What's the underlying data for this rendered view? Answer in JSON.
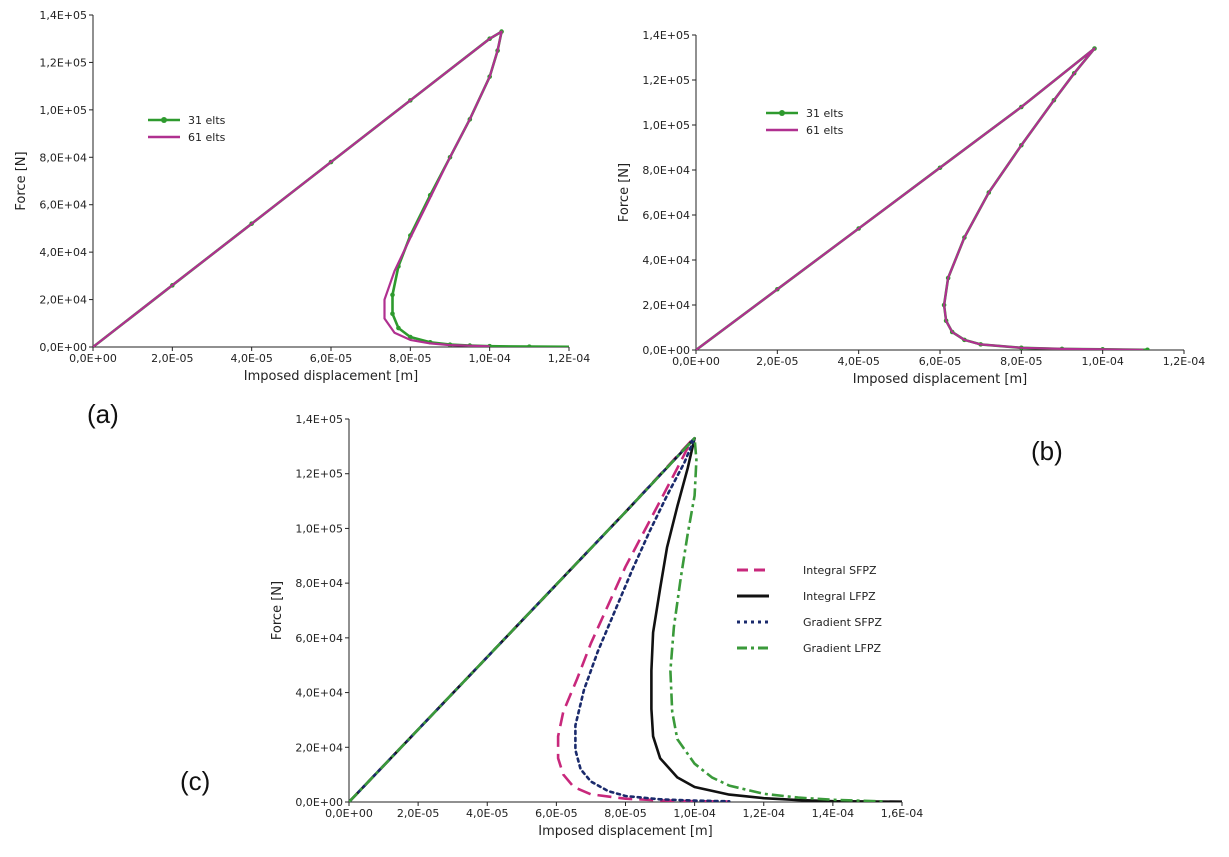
{
  "figure": {
    "panel_labels": [
      "(a)",
      "(b)",
      "(c)"
    ]
  },
  "chart_data": [
    {
      "id": "a",
      "type": "line",
      "panel_label": "(a)",
      "xlabel": "Imposed displacement [m]",
      "ylabel": "Force [N]",
      "xlim": [
        0,
        0.00012
      ],
      "ylim": [
        0,
        140000
      ],
      "xticks": [
        0,
        2e-05,
        4e-05,
        6e-05,
        8e-05,
        0.0001,
        0.00012
      ],
      "xtick_labels": [
        "0,0E+00",
        "2,0E-05",
        "4,0E-05",
        "6,0E-05",
        "8,0E-05",
        "1,0E-04",
        "1,2E-04"
      ],
      "yticks": [
        0,
        20000,
        40000,
        60000,
        80000,
        100000,
        120000,
        140000
      ],
      "ytick_labels": [
        "0,0E+00",
        "2,0E+04",
        "4,0E+04",
        "6,0E+04",
        "8,0E+04",
        "1,0E+05",
        "1,2E+05",
        "1,4E+05"
      ],
      "legend": "top-left",
      "series": [
        {
          "name": "31 elts",
          "color": "#2e9a2e",
          "style": "solid",
          "marker": "circle",
          "x": [
            0,
            2e-05,
            4e-05,
            6e-05,
            8e-05,
            0.0001,
            0.000103,
            0.000102,
            0.0001,
            9.5e-05,
            9e-05,
            8.5e-05,
            8e-05,
            7.7e-05,
            7.55e-05,
            7.55e-05,
            7.7e-05,
            8e-05,
            8.5e-05,
            9e-05,
            9.5e-05,
            0.0001,
            0.00011,
            0.000124
          ],
          "y": [
            0,
            26000,
            52000,
            78000,
            104000,
            130000,
            133000,
            125000,
            114000,
            96000,
            80000,
            64000,
            47000,
            34000,
            22000,
            14000,
            8000,
            4200,
            2000,
            1000,
            600,
            350,
            150,
            60
          ]
        },
        {
          "name": "61 elts",
          "color": "#b03090",
          "style": "solid",
          "marker": "none",
          "x": [
            0,
            2e-05,
            4e-05,
            6e-05,
            8e-05,
            0.0001,
            0.000103,
            0.000102,
            0.0001,
            9.5e-05,
            9e-05,
            8.5e-05,
            8e-05,
            7.6e-05,
            7.35e-05,
            7.35e-05,
            7.6e-05,
            8e-05,
            8.5e-05,
            9e-05,
            0.0001
          ],
          "y": [
            0,
            26000,
            52000,
            78000,
            104000,
            130000,
            133000,
            125000,
            114000,
            96000,
            80000,
            63000,
            46000,
            32000,
            20000,
            12000,
            6000,
            3000,
            1500,
            800,
            300
          ]
        }
      ]
    },
    {
      "id": "b",
      "type": "line",
      "panel_label": "(b)",
      "xlabel": "Imposed displacement [m]",
      "ylabel": "Force [N]",
      "xlim": [
        0,
        0.00012
      ],
      "ylim": [
        0,
        140000
      ],
      "xticks": [
        0,
        2e-05,
        4e-05,
        6e-05,
        8e-05,
        0.0001,
        0.00012
      ],
      "xtick_labels": [
        "0,0E+00",
        "2,0E-05",
        "4,0E-05",
        "6,0E-05",
        "8,0E-05",
        "1,0E-04",
        "1,2E-04"
      ],
      "yticks": [
        0,
        20000,
        40000,
        60000,
        80000,
        100000,
        120000,
        140000
      ],
      "ytick_labels": [
        "0,0E+00",
        "2,0E+04",
        "4,0E+04",
        "6,0E+04",
        "8,0E+04",
        "1,0E+05",
        "1,2E+05",
        "1,4E+05"
      ],
      "legend": "top-left",
      "series": [
        {
          "name": "31 elts",
          "color": "#2e9a2e",
          "style": "solid",
          "marker": "circle",
          "x": [
            0,
            2e-05,
            4e-05,
            6e-05,
            8e-05,
            9.8e-05,
            9.3e-05,
            8.8e-05,
            8e-05,
            7.2e-05,
            6.6e-05,
            6.2e-05,
            6.1e-05,
            6.15e-05,
            6.3e-05,
            6.6e-05,
            7e-05,
            8e-05,
            9e-05,
            0.0001,
            0.000111
          ],
          "y": [
            0,
            27000,
            54000,
            81000,
            108000,
            134000,
            123000,
            111000,
            91000,
            70000,
            50000,
            32000,
            20000,
            13000,
            8000,
            4500,
            2500,
            1000,
            500,
            300,
            100
          ]
        },
        {
          "name": "61 elts",
          "color": "#b03090",
          "style": "solid",
          "marker": "none",
          "x": [
            0,
            2e-05,
            4e-05,
            6e-05,
            8e-05,
            9.8e-05,
            9.3e-05,
            8.8e-05,
            8e-05,
            7.2e-05,
            6.6e-05,
            6.2e-05,
            6.1e-05,
            6.15e-05,
            6.3e-05,
            6.6e-05,
            7e-05,
            8e-05,
            9e-05,
            0.0001,
            0.00011
          ],
          "y": [
            0,
            27000,
            54000,
            81000,
            108000,
            134000,
            123000,
            111000,
            91000,
            70000,
            50000,
            32000,
            20000,
            13000,
            8000,
            4500,
            2500,
            1000,
            500,
            300,
            100
          ]
        }
      ]
    },
    {
      "id": "c",
      "type": "line",
      "panel_label": "(c)",
      "xlabel": "Imposed displacement [m]",
      "ylabel": "Force [N]",
      "xlim": [
        0,
        0.00016
      ],
      "ylim": [
        0,
        140000
      ],
      "xticks": [
        0,
        2e-05,
        4e-05,
        6e-05,
        8e-05,
        0.0001,
        0.00012,
        0.00014,
        0.00016
      ],
      "xtick_labels": [
        "0,0E+00",
        "2,0E-05",
        "4,0E-05",
        "6,0E-05",
        "8,0E-05",
        "1,0E-04",
        "1,2E-04",
        "1,4E-04",
        "1,6E-04"
      ],
      "yticks": [
        0,
        20000,
        40000,
        60000,
        80000,
        100000,
        120000,
        140000
      ],
      "ytick_labels": [
        "0,0E+00",
        "2,0E+04",
        "4,0E+04",
        "6,0E+04",
        "8,0E+04",
        "1,0E+05",
        "1,2E+05",
        "1,4E+05"
      ],
      "legend": "right",
      "series": [
        {
          "name": "Integral SFPZ",
          "color": "#c8287c",
          "style": "dashed",
          "x": [
            0,
            4e-05,
            8e-05,
            9.9e-05,
            9.5e-05,
            9e-05,
            8.5e-05,
            8e-05,
            7.5e-05,
            7e-05,
            6.6e-05,
            6.2e-05,
            6.05e-05,
            6.05e-05,
            6.2e-05,
            6.5e-05,
            7e-05,
            8e-05,
            9e-05,
            0.0001,
            0.00011
          ],
          "y": [
            0,
            53000,
            106000,
            132000,
            122000,
            110000,
            98000,
            86000,
            72000,
            58000,
            45000,
            33000,
            24000,
            16000,
            10000,
            5500,
            2800,
            1200,
            600,
            300,
            150
          ]
        },
        {
          "name": "Integral LFPZ",
          "color": "#111111",
          "style": "solid",
          "x": [
            0,
            4e-05,
            8e-05,
            0.0001,
            9.8e-05,
            9.5e-05,
            9.2e-05,
            9e-05,
            8.8e-05,
            8.75e-05,
            8.75e-05,
            8.8e-05,
            9e-05,
            9.5e-05,
            0.0001,
            0.00011,
            0.00012,
            0.00013,
            0.00014,
            0.00016
          ],
          "y": [
            0,
            53000,
            106000,
            133000,
            122000,
            108000,
            93000,
            78000,
            62000,
            48000,
            34000,
            24000,
            16000,
            9000,
            5500,
            2700,
            1400,
            700,
            300,
            100
          ]
        },
        {
          "name": "Gradient SFPZ",
          "color": "#1a2a6c",
          "style": "dotted",
          "x": [
            0,
            4e-05,
            8e-05,
            0.0001,
            9.7e-05,
            9.2e-05,
            8.7e-05,
            8.2e-05,
            7.7e-05,
            7.2e-05,
            6.8e-05,
            6.55e-05,
            6.55e-05,
            6.7e-05,
            7e-05,
            7.5e-05,
            8e-05,
            9e-05,
            0.0001,
            0.00011
          ],
          "y": [
            0,
            53000,
            106000,
            133000,
            124000,
            112000,
            99000,
            85000,
            70000,
            55000,
            41000,
            28000,
            19000,
            12000,
            7500,
            4000,
            2200,
            1000,
            500,
            250
          ]
        },
        {
          "name": "Gradient LFPZ",
          "color": "#3a9a3a",
          "style": "dashdot",
          "x": [
            0,
            4e-05,
            8e-05,
            0.0001,
            0.0001005,
            0.0001,
            9.8e-05,
            9.6e-05,
            9.4e-05,
            9.3e-05,
            9.35e-05,
            9.5e-05,
            0.0001,
            0.000105,
            0.00011,
            0.00012,
            0.00013,
            0.00014,
            0.00015,
            0.000155
          ],
          "y": [
            0,
            53000,
            106000,
            133000,
            125000,
            112000,
            98000,
            82000,
            64000,
            48000,
            33000,
            23000,
            14000,
            9000,
            6000,
            3000,
            1600,
            800,
            400,
            200
          ]
        }
      ]
    }
  ]
}
